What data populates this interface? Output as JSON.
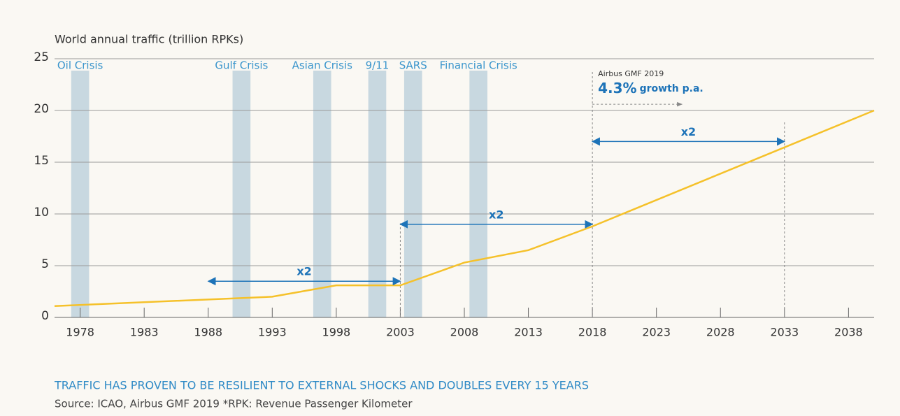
{
  "chart_data": {
    "type": "line",
    "y_label": "World annual traffic (trillion RPKs)",
    "caption": "TRAFFIC HAS PROVEN TO BE RESILIENT TO EXTERNAL SHOCKS AND DOUBLES EVERY 15 YEARS",
    "source": "Source: ICAO, Airbus GMF 2019 *RPK: Revenue Passenger Kilometer",
    "x": [
      1976,
      1993,
      1998,
      2003,
      2008,
      2013,
      2018,
      2040
    ],
    "series": [
      {
        "color": "#f5c12a",
        "values": [
          1.1,
          2.0,
          3.1,
          3.1,
          5.3,
          6.5,
          8.8,
          20
        ]
      }
    ],
    "xlim": [
      1976,
      2040
    ],
    "ylim": [
      0,
      25
    ],
    "xticks": [
      1978,
      1983,
      1988,
      1993,
      1998,
      2003,
      2008,
      2013,
      2018,
      2023,
      2028,
      2033,
      2038
    ],
    "yticks": [
      0,
      5,
      10,
      15,
      20,
      25
    ],
    "grid": true,
    "bands": [
      {
        "label": "Oil Crisis",
        "start": 1977.3,
        "end": 1978.7
      },
      {
        "label": "Gulf Crisis",
        "start": 1989.9,
        "end": 1991.3
      },
      {
        "label": "Asian Crisis",
        "start": 1996.2,
        "end": 1997.6
      },
      {
        "label": "9/11",
        "start": 2000.5,
        "end": 2001.9
      },
      {
        "label": "SARS",
        "start": 2003.3,
        "end": 2004.7
      },
      {
        "label": "Financial Crisis",
        "start": 2008.4,
        "end": 2009.8
      }
    ],
    "band_color": "#c8d8e0",
    "doublings": [
      {
        "start": 1988,
        "end": 2003,
        "y": 3.5,
        "label": "x2"
      },
      {
        "start": 2003,
        "end": 2018,
        "y": 9.0,
        "label": "x2"
      },
      {
        "start": 2018,
        "end": 2033,
        "y": 17.0,
        "label": "x2"
      }
    ],
    "guides": [
      {
        "x": 2003,
        "top": 9.1
      },
      {
        "x": 2018,
        "top": 23.9
      },
      {
        "x": 2033,
        "top": 18.9
      }
    ],
    "forecast_note": {
      "source": "Airbus GMF 2019",
      "rate": "4.3%",
      "text": "growth p.a.",
      "x": 2018,
      "y": 20.6,
      "arrow_end": 2025
    }
  }
}
